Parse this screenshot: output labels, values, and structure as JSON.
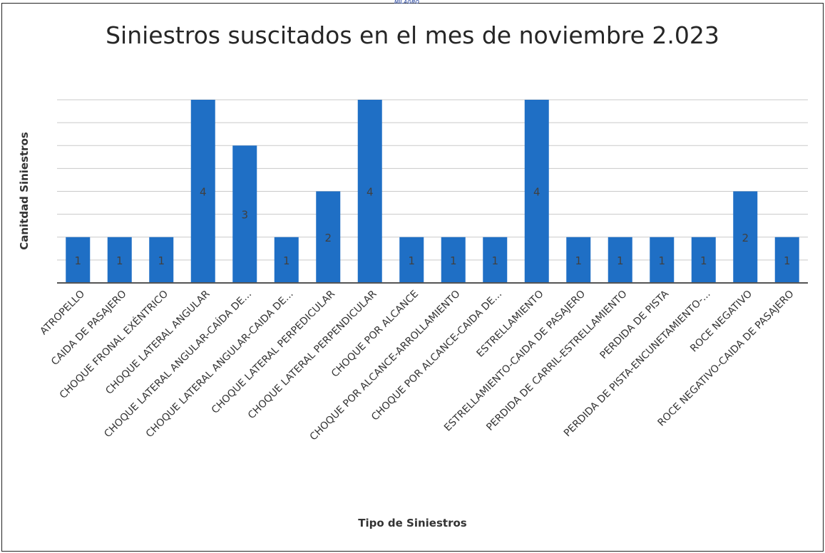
{
  "header_mark": "MILAGRO",
  "chart_data": {
    "type": "bar",
    "title": "Siniestros suscitados en el mes de noviembre 2.023",
    "xlabel": "Tipo de Siniestros",
    "ylabel": "Canitdad Siniestros",
    "categories": [
      "ATROPELLO",
      "CAIDA DE PASAJERO",
      "CHOQUE FRONAL EXÉNTRICO",
      "CHOQUE LATERAL ANGULAR",
      "CHOQUE LATERAL ANGULAR-CAÍDA DE...",
      "CHOQUE LATERAL ANGULAR-CAIDA DE...",
      "CHOQUE LATERAL PERPEDICULAR",
      "CHOQUE LATERAL PERPENDICULAR",
      "CHOQUE POR ALCANCE",
      "CHOQUE POR ALCANCE-ARROLLAMIENTO",
      "CHOQUE POR ALCANCE-CAIDA DE...",
      "ESTRELLAMIENTO",
      "ESTRELLAMIENTO-CAIDA DE PASAJERO",
      "PERDIDA DE CARRIL-ESTRELLAMIENTO",
      "PERDIDA DE PISTA",
      "PERDIDA DE PISTA-ENCUNETAMIENTO-...",
      "ROCE NEGATIVO",
      "ROCE NEGATIVO-CAIDA DE PASAJERO"
    ],
    "values": [
      1,
      1,
      1,
      4,
      3,
      1,
      2,
      4,
      1,
      1,
      1,
      4,
      1,
      1,
      1,
      1,
      2,
      1
    ],
    "ylim": [
      0,
      4
    ],
    "data_labels": true,
    "grid": true,
    "legend": "none",
    "bar_color": "#1f6fc5"
  }
}
